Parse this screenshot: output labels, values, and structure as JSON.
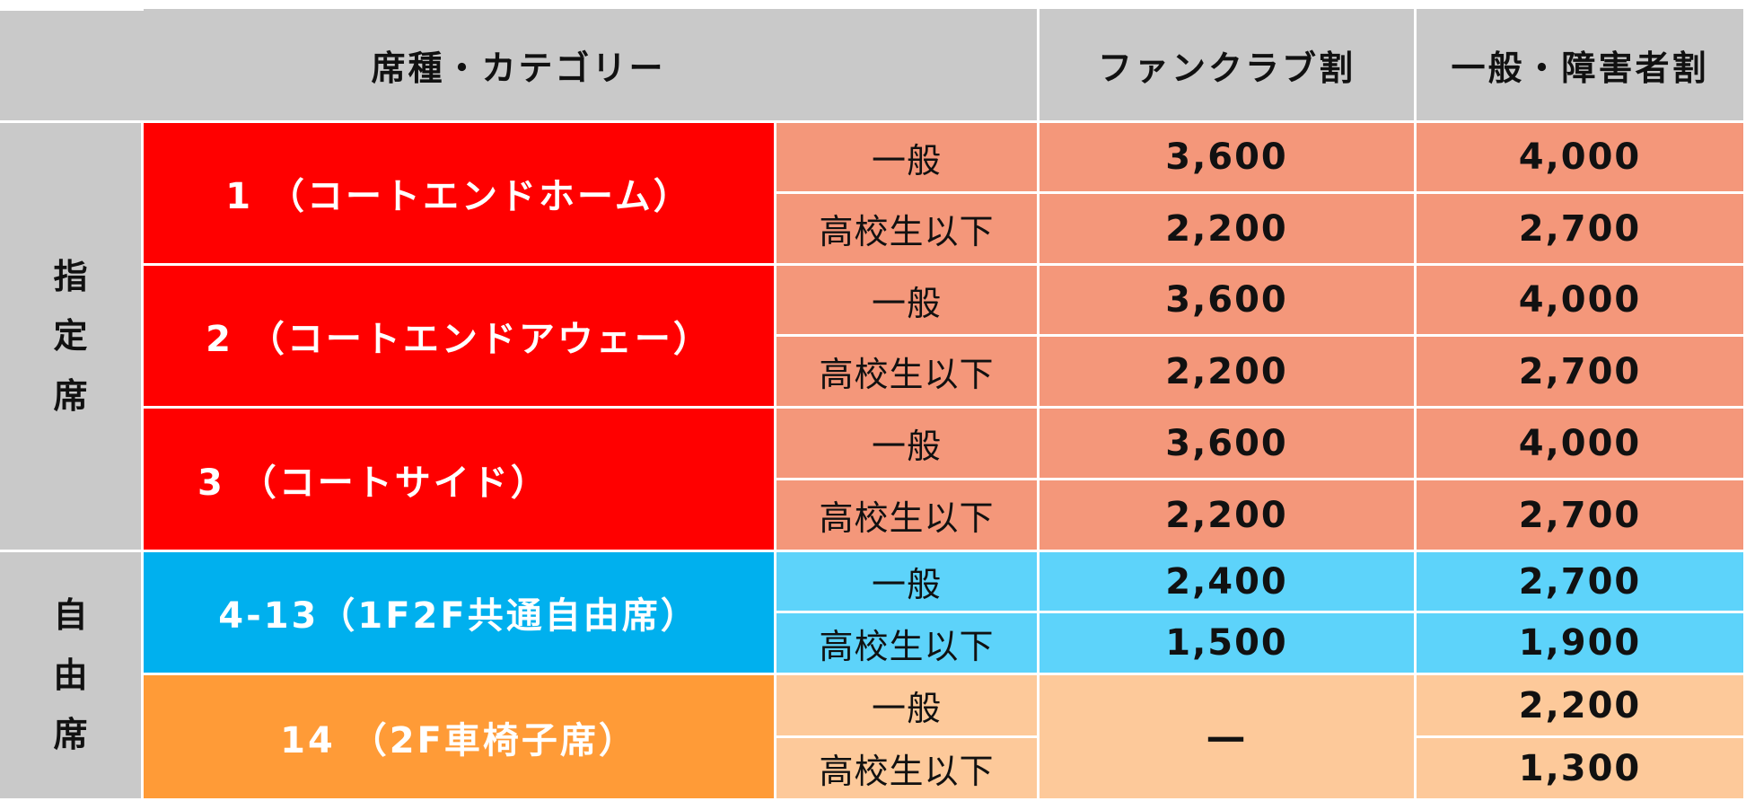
{
  "colors": {
    "header_bg": "#c9c9c9",
    "reserved_seat_bg": "#ff0000",
    "reserved_row_bg": "#f4977a",
    "free_seat_bg": "#00b0ee",
    "free_row_bg": "#5dd3fa",
    "wheelchair_seat_bg": "#ff9b37",
    "wheelchair_row_bg": "#fdc99a"
  },
  "header": {
    "category": "席種・カテゴリー",
    "fanclub": "ファンクラブ割",
    "general": "一般・障害者割"
  },
  "groups": {
    "reserved": "指\n定\n席",
    "free": "自\n由\n席"
  },
  "seats": [
    {
      "name": "1 （コートエンドホーム）",
      "rows": [
        {
          "type": "一般",
          "fanclub": "3,600",
          "general": "4,000"
        },
        {
          "type": "高校生以下",
          "fanclub": "2,200",
          "general": "2,700"
        }
      ]
    },
    {
      "name": "2 （コートエンドアウェー）",
      "rows": [
        {
          "type": "一般",
          "fanclub": "3,600",
          "general": "4,000"
        },
        {
          "type": "高校生以下",
          "fanclub": "2,200",
          "general": "2,700"
        }
      ]
    },
    {
      "name": "3 （コートサイド）",
      "rows": [
        {
          "type": "一般",
          "fanclub": "3,600",
          "general": "4,000"
        },
        {
          "type": "高校生以下",
          "fanclub": "2,200",
          "general": "2,700"
        }
      ]
    },
    {
      "name": "4-13（1F2F共通自由席）",
      "rows": [
        {
          "type": "一般",
          "fanclub": "2,400",
          "general": "2,700"
        },
        {
          "type": "高校生以下",
          "fanclub": "1,500",
          "general": "1,900"
        }
      ]
    },
    {
      "name": "14 （2F車椅子席）",
      "fanclub_merged": "－",
      "rows": [
        {
          "type": "一般",
          "general": "2,200"
        },
        {
          "type": "高校生以下",
          "general": "1,300"
        }
      ]
    }
  ]
}
